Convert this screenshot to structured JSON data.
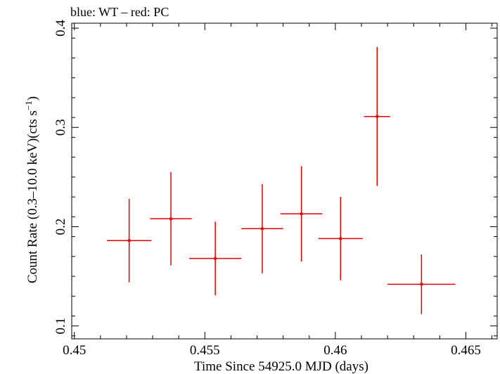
{
  "chart_data": {
    "type": "scatter",
    "title": "blue: WT – red: PC",
    "xlabel": "Time Since 54925.0 MJD (days)",
    "ylabel_main": "Count Rate (0.3–10.0 keV)(cts s",
    "ylabel_sup": "−1",
    "ylabel_end": ")",
    "xlim": [
      0.4499,
      0.4662
    ],
    "ylim": [
      0.087,
      0.405
    ],
    "x_ticks": [
      0.45,
      0.455,
      0.46,
      0.465
    ],
    "x_tick_labels": [
      "0.45",
      "0.455",
      "0.46",
      "0.465"
    ],
    "y_ticks": [
      0.1,
      0.2,
      0.3,
      0.4
    ],
    "y_tick_labels": [
      "0.1",
      "0.2",
      "0.3",
      "0.4"
    ],
    "grid": false,
    "series": [
      {
        "color": "#e00000",
        "points": [
          {
            "x": 0.4521,
            "xerr": 0.00085,
            "y": 0.186,
            "yerr": 0.042
          },
          {
            "x": 0.4537,
            "xerr": 0.0008,
            "y": 0.208,
            "yerr": 0.047
          },
          {
            "x": 0.4554,
            "xerr": 0.001,
            "y": 0.168,
            "yerr": 0.037
          },
          {
            "x": 0.4572,
            "xerr": 0.0008,
            "y": 0.198,
            "yerr": 0.045
          },
          {
            "x": 0.4587,
            "xerr": 0.0008,
            "y": 0.213,
            "yerr": 0.048
          },
          {
            "x": 0.4602,
            "xerr": 0.00085,
            "y": 0.188,
            "yerr": 0.042
          },
          {
            "x": 0.4616,
            "xerr": 0.0005,
            "y": 0.311,
            "yerr": 0.07
          },
          {
            "x": 0.4633,
            "xerr": 0.0013,
            "y": 0.142,
            "yerr": 0.03
          }
        ]
      }
    ]
  }
}
